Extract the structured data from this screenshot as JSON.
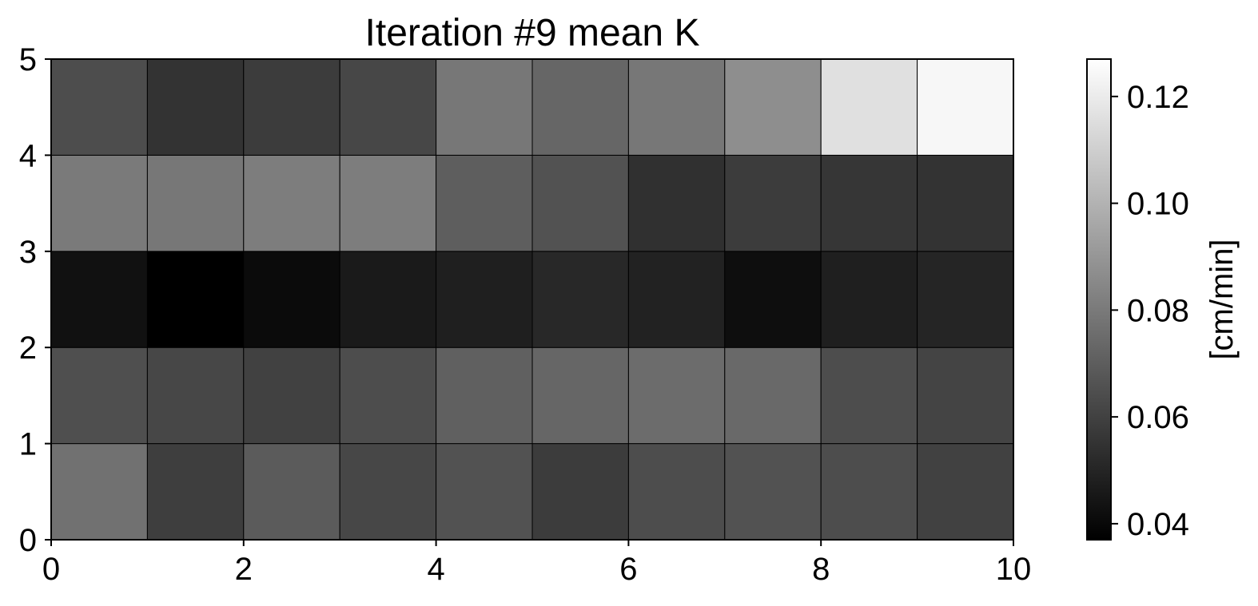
{
  "chart_data": {
    "type": "heatmap",
    "title": "Iteration #9 mean K",
    "colormap": "gray",
    "x_edges": [
      0,
      1,
      2,
      3,
      4,
      5,
      6,
      7,
      8,
      9,
      10
    ],
    "y_edges": [
      0,
      1,
      2,
      3,
      4,
      5
    ],
    "xlim": [
      0,
      10
    ],
    "ylim": [
      0,
      5
    ],
    "x_ticks": [
      0,
      2,
      4,
      6,
      8,
      10
    ],
    "x_tick_labels": [
      "0",
      "2",
      "4",
      "6",
      "8",
      "10"
    ],
    "y_ticks": [
      0,
      1,
      2,
      3,
      4,
      5
    ],
    "y_tick_labels": [
      "0",
      "1",
      "2",
      "3",
      "4",
      "5"
    ],
    "rows_bottom_to_top": [
      [
        0.077,
        0.059,
        0.069,
        0.062,
        0.066,
        0.058,
        0.064,
        0.066,
        0.064,
        0.06
      ],
      [
        0.065,
        0.062,
        0.06,
        0.064,
        0.071,
        0.073,
        0.075,
        0.074,
        0.064,
        0.061
      ],
      [
        0.043,
        0.037,
        0.041,
        0.046,
        0.048,
        0.051,
        0.049,
        0.042,
        0.048,
        0.05
      ],
      [
        0.08,
        0.079,
        0.081,
        0.081,
        0.07,
        0.066,
        0.054,
        0.058,
        0.056,
        0.055
      ],
      [
        0.064,
        0.055,
        0.058,
        0.062,
        0.079,
        0.073,
        0.079,
        0.087,
        0.116,
        0.124
      ]
    ],
    "colorbar": {
      "label": "[cm/min]",
      "vmin": 0.037,
      "vmax": 0.127,
      "ticks": [
        0.04,
        0.06,
        0.08,
        0.1,
        0.12
      ],
      "tick_labels": [
        "0.04",
        "0.06",
        "0.08",
        "0.10",
        "0.12"
      ]
    }
  }
}
